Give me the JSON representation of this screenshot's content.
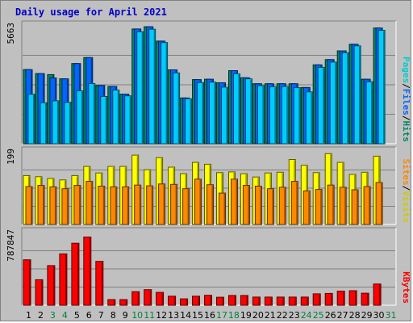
{
  "title": "Daily usage for April 2021",
  "chart_data": [
    {
      "type": "bar",
      "panel": "hits_files_pages",
      "ytick_label": "5663",
      "ymax": 5663,
      "legend": [
        {
          "text": "Pages",
          "color": "#00cccc"
        },
        {
          "text": "Files",
          "color": "#0066ff"
        },
        {
          "text": "Hits",
          "color": "#008866"
        }
      ],
      "series": [
        {
          "name": "Hits",
          "color": "#008866",
          "values": [
            3560,
            3370,
            3320,
            3120,
            3850,
            4140,
            2800,
            2750,
            2380,
            5510,
            5620,
            4930,
            3550,
            2200,
            3080,
            3100,
            2930,
            3510,
            3170,
            2880,
            2880,
            2880,
            2880,
            2700,
            3790,
            4040,
            4460,
            4780,
            3100,
            5560
          ]
        },
        {
          "name": "Files",
          "color": "#0066ff",
          "values": [
            3560,
            3370,
            3160,
            3120,
            3850,
            4140,
            2800,
            2750,
            2380,
            5510,
            5620,
            4930,
            3550,
            2200,
            3080,
            3100,
            2930,
            3510,
            3170,
            2880,
            2880,
            2880,
            2880,
            2700,
            3790,
            4040,
            4460,
            4780,
            3100,
            5560
          ]
        },
        {
          "name": "Pages",
          "color": "#00ccff",
          "values": [
            2380,
            1970,
            2060,
            1990,
            2540,
            2890,
            2270,
            2580,
            2300,
            5380,
            5500,
            4860,
            3400,
            2160,
            2940,
            2960,
            2720,
            3360,
            3120,
            2790,
            2740,
            2750,
            2690,
            2490,
            3670,
            3920,
            4370,
            4700,
            2980,
            5450
          ]
        }
      ]
    },
    {
      "type": "bar",
      "panel": "visits_sites",
      "ytick_label": "199",
      "ymax": 199,
      "legend": [
        {
          "text": "Sites",
          "color": "#ff8800"
        },
        {
          "text": "Visits",
          "color": "#cccc00"
        }
      ],
      "series": [
        {
          "name": "Visits",
          "color": "#ffff00",
          "values": [
            134,
            131,
            126,
            122,
            134,
            159,
            141,
            159,
            159,
            190,
            150,
            183,
            157,
            139,
            170,
            165,
            142,
            144,
            139,
            130,
            141,
            143,
            178,
            162,
            142,
            194,
            170,
            137,
            143,
            187
          ]
        },
        {
          "name": "Sites",
          "color": "#ff8800",
          "values": [
            104,
            107,
            103,
            98,
            107,
            118,
            105,
            103,
            103,
            108,
            106,
            111,
            110,
            98,
            124,
            109,
            86,
            124,
            107,
            105,
            98,
            102,
            118,
            92,
            96,
            108,
            102,
            95,
            104,
            115
          ]
        }
      ]
    },
    {
      "type": "bar",
      "panel": "kbytes",
      "ytick_label": "787847",
      "ymax": 787847,
      "legend": [
        {
          "text": "KBytes",
          "color": "#ff0000"
        }
      ],
      "series": [
        {
          "name": "KBytes",
          "color": "#ff0000",
          "values": [
            493000,
            277000,
            430000,
            557000,
            672000,
            740000,
            475000,
            61000,
            61000,
            147000,
            169000,
            139000,
            98000,
            69000,
            98000,
            108000,
            87000,
            106000,
            106000,
            88000,
            88000,
            88000,
            88000,
            88000,
            123000,
            128000,
            153000,
            158000,
            130000,
            230000
          ]
        }
      ]
    }
  ],
  "days": [
    {
      "label": "1",
      "weekend": false
    },
    {
      "label": "2",
      "weekend": false
    },
    {
      "label": "3",
      "weekend": true
    },
    {
      "label": "4",
      "weekend": true
    },
    {
      "label": "5",
      "weekend": false
    },
    {
      "label": "6",
      "weekend": false
    },
    {
      "label": "7",
      "weekend": false
    },
    {
      "label": "8",
      "weekend": false
    },
    {
      "label": "9",
      "weekend": false
    },
    {
      "label": "10",
      "weekend": true
    },
    {
      "label": "11",
      "weekend": true
    },
    {
      "label": "12",
      "weekend": false
    },
    {
      "label": "13",
      "weekend": false
    },
    {
      "label": "14",
      "weekend": false
    },
    {
      "label": "15",
      "weekend": false
    },
    {
      "label": "16",
      "weekend": false
    },
    {
      "label": "17",
      "weekend": true
    },
    {
      "label": "18",
      "weekend": true
    },
    {
      "label": "19",
      "weekend": false
    },
    {
      "label": "20",
      "weekend": false
    },
    {
      "label": "21",
      "weekend": false
    },
    {
      "label": "22",
      "weekend": false
    },
    {
      "label": "23",
      "weekend": false
    },
    {
      "label": "24",
      "weekend": true
    },
    {
      "label": "25",
      "weekend": true
    },
    {
      "label": "26",
      "weekend": false
    },
    {
      "label": "27",
      "weekend": false
    },
    {
      "label": "28",
      "weekend": false
    },
    {
      "label": "29",
      "weekend": false
    },
    {
      "label": "30",
      "weekend": false
    },
    {
      "label": "31",
      "weekend": true
    }
  ],
  "colors": {
    "background": "#c0c0c0",
    "plot_background": "#c0c0c0",
    "gridline": "#808080",
    "weekday_label": "#000000",
    "weekend_label": "#008040",
    "slash": "#000000"
  }
}
